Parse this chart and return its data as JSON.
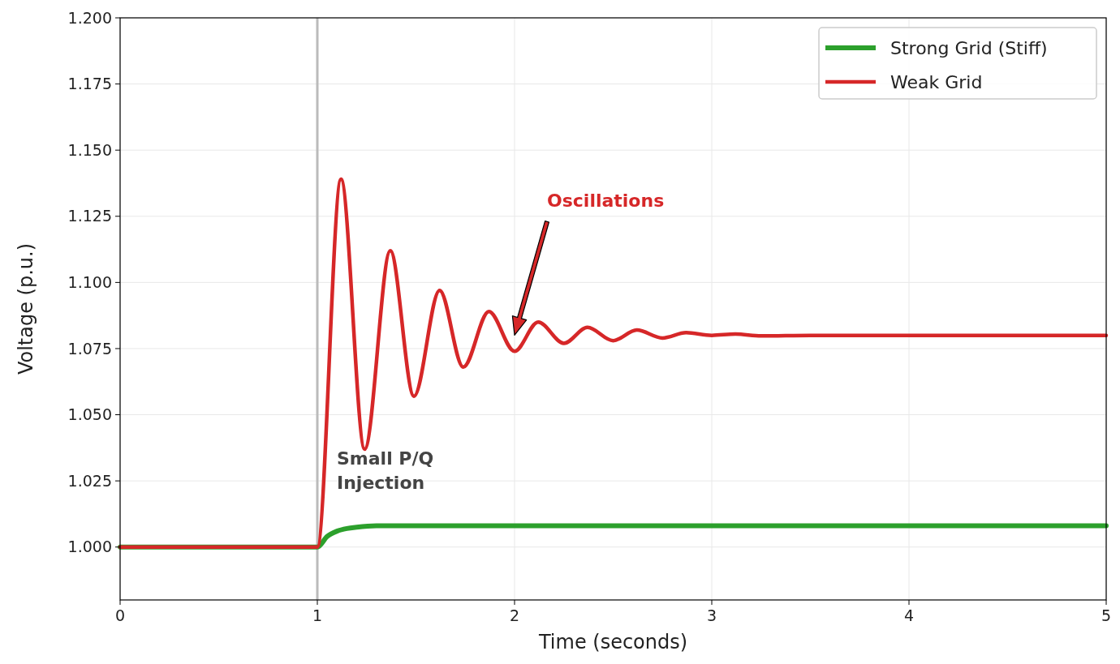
{
  "chart_data": {
    "type": "line",
    "xlabel": "Time (seconds)",
    "ylabel": "Voltage (p.u.)",
    "xlim": [
      0,
      5
    ],
    "xticks": [
      0,
      1,
      2,
      3,
      4,
      5
    ],
    "ylim": [
      0.98,
      1.2
    ],
    "yticks": [
      {
        "value": 1.0,
        "label": "1.000"
      },
      {
        "value": 1.025,
        "label": "1.025"
      },
      {
        "value": 1.05,
        "label": "1.050"
      },
      {
        "value": 1.075,
        "label": "1.075"
      },
      {
        "value": 1.1,
        "label": "1.100"
      },
      {
        "value": 1.125,
        "label": "1.125"
      },
      {
        "value": 1.15,
        "label": "1.150"
      },
      {
        "value": 1.175,
        "label": "1.175"
      },
      {
        "value": 1.2,
        "label": "1.200"
      }
    ],
    "grid": true,
    "legend": "top right",
    "series": [
      {
        "name": "Strong Grid (Stiff)",
        "color": "#2ca02c",
        "x": [
          0,
          1,
          1.05,
          1.1,
          1.15,
          1.2,
          1.3,
          1.4,
          5
        ],
        "values": [
          1.0,
          1.0,
          1.004,
          1.006,
          1.007,
          1.0075,
          1.008,
          1.008,
          1.008
        ]
      },
      {
        "name": "Weak Grid",
        "color": "#d62728",
        "x": [
          0,
          1,
          1.12,
          1.24,
          1.37,
          1.49,
          1.62,
          1.74,
          1.87,
          2.0,
          2.12,
          2.25,
          2.37,
          2.5,
          2.62,
          2.75,
          2.87,
          3.0,
          3.12,
          3.25,
          3.5,
          5
        ],
        "values": [
          1.0,
          1.0,
          1.139,
          1.037,
          1.112,
          1.057,
          1.097,
          1.068,
          1.089,
          1.074,
          1.085,
          1.077,
          1.083,
          1.078,
          1.082,
          1.079,
          1.081,
          1.08,
          1.0805,
          1.0798,
          1.08,
          1.08
        ]
      }
    ],
    "ref_lines": [
      {
        "axis": "x",
        "value": 1,
        "color": "#bbbbbb"
      }
    ],
    "annotations": [
      {
        "text": "Small P/Q\nInjection",
        "x": 1,
        "y": 1.025
      },
      "Oscillations"
    ]
  }
}
